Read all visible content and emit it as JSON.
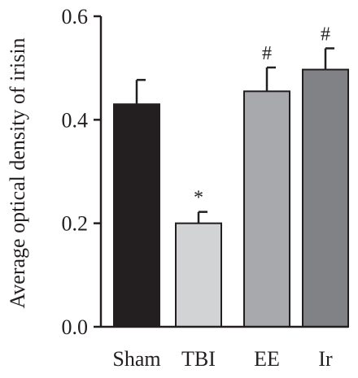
{
  "chart_data": {
    "type": "bar",
    "title": "",
    "xlabel": "",
    "ylabel": "Average optical density of irisin",
    "categories": [
      "Sham",
      "TBI",
      "EE",
      "Ir"
    ],
    "values": [
      0.43,
      0.2,
      0.455,
      0.497
    ],
    "error_upper": [
      0.477,
      0.222,
      0.501,
      0.538
    ],
    "significance": [
      "",
      "*",
      "#",
      "#"
    ],
    "bar_colors": [
      "#231f20",
      "#d1d3d4",
      "#a7a9ac",
      "#808285"
    ],
    "ylim": [
      0.0,
      0.6
    ],
    "yticks": [
      0.0,
      0.2,
      0.4,
      0.6
    ],
    "ytick_labels": [
      "0.0",
      "0.2",
      "0.4",
      "0.6"
    ],
    "grid": false,
    "legend": "none"
  }
}
